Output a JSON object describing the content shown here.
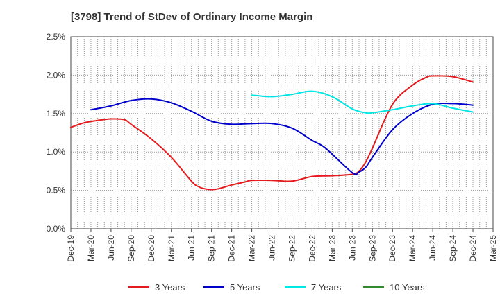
{
  "chart_data": {
    "type": "line",
    "title": "[3798]  Trend of StDev of Ordinary Income Margin",
    "xlabel": "",
    "ylabel": "",
    "ylim": [
      0,
      2.5
    ],
    "yticks": [
      "0.0%",
      "0.5%",
      "1.0%",
      "1.5%",
      "2.0%",
      "2.5%"
    ],
    "categories": [
      "Dec-19",
      "Mar-20",
      "Jun-20",
      "Sep-20",
      "Dec-20",
      "Mar-21",
      "Jun-21",
      "Sep-21",
      "Dec-21",
      "Mar-22",
      "Jun-22",
      "Sep-22",
      "Dec-22",
      "Mar-23",
      "Jun-23",
      "Sep-23",
      "Dec-23",
      "Mar-24",
      "Jun-24",
      "Sep-24",
      "Dec-24",
      "Mar-25"
    ],
    "grid": true,
    "legend_position": "bottom",
    "series": [
      {
        "name": "3 Years",
        "color": "#e41a1c",
        "x": [
          "Dec-19",
          "Feb-20",
          "Apr-20",
          "Jun-20",
          "Aug-20",
          "Sep-20",
          "Dec-20",
          "Mar-21",
          "Jun-21",
          "Jul-21",
          "Aug-21",
          "Sep-21",
          "Oct-21",
          "Dec-21",
          "Feb-22",
          "Mar-22",
          "Jun-22",
          "Sep-22",
          "Dec-22",
          "Mar-23",
          "Jun-23",
          "Jul-23",
          "Aug-23",
          "Sep-23",
          "Dec-23",
          "Mar-24",
          "May-24",
          "Jun-24",
          "Sep-24",
          "Dec-24"
        ],
        "values": [
          1.32,
          1.38,
          1.41,
          1.43,
          1.42,
          1.36,
          1.17,
          0.93,
          0.62,
          0.55,
          0.52,
          0.51,
          0.52,
          0.57,
          0.61,
          0.63,
          0.63,
          0.62,
          0.68,
          0.69,
          0.71,
          0.75,
          0.87,
          1.05,
          1.62,
          1.87,
          1.97,
          1.99,
          1.98,
          1.91
        ]
      },
      {
        "name": "5 Years",
        "color": "#0000cc",
        "x": [
          "Mar-20",
          "Jun-20",
          "Sep-20",
          "Dec-20",
          "Mar-21",
          "Jun-21",
          "Sep-21",
          "Dec-21",
          "Mar-22",
          "Jun-22",
          "Sep-22",
          "Dec-22",
          "Feb-23",
          "Jun-23",
          "Jul-23",
          "Aug-23",
          "Sep-23",
          "Dec-23",
          "Mar-24",
          "Jun-24",
          "Sep-24",
          "Dec-24"
        ],
        "values": [
          1.55,
          1.6,
          1.67,
          1.69,
          1.64,
          1.53,
          1.4,
          1.36,
          1.37,
          1.37,
          1.31,
          1.15,
          1.05,
          0.73,
          0.74,
          0.8,
          0.93,
          1.29,
          1.5,
          1.62,
          1.63,
          1.61
        ]
      },
      {
        "name": "7 Years",
        "color": "#00e5e5",
        "x": [
          "Mar-22",
          "Jun-22",
          "Sep-22",
          "Dec-22",
          "Mar-23",
          "Jun-23",
          "Aug-23",
          "Sep-23",
          "Dec-23",
          "Mar-24",
          "Jun-24",
          "Sep-24",
          "Dec-24"
        ],
        "values": [
          1.74,
          1.72,
          1.75,
          1.79,
          1.72,
          1.56,
          1.51,
          1.51,
          1.55,
          1.6,
          1.63,
          1.57,
          1.52
        ]
      },
      {
        "name": "10 Years",
        "color": "#2e8b2e",
        "x": [],
        "values": []
      }
    ]
  }
}
